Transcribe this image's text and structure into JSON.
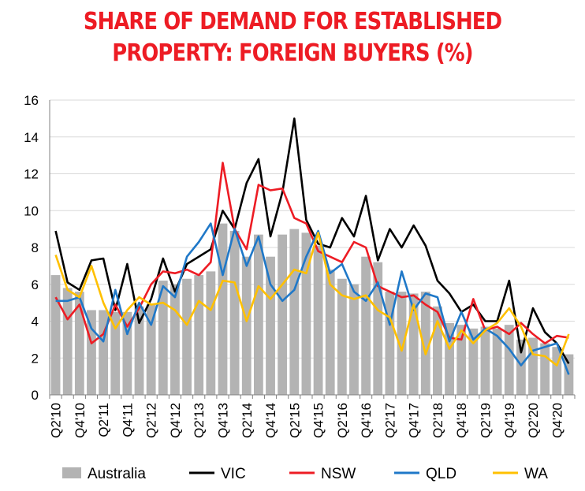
{
  "title_line1": "SHARE OF DEMAND FOR ESTABLISHED",
  "title_line2": "PROPERTY: FOREIGN BUYERS (%)",
  "chart_data": {
    "type": "bar+line",
    "title": "SHARE OF DEMAND FOR ESTABLISHED PROPERTY: FOREIGN BUYERS (%)",
    "xlabel": "",
    "ylabel": "",
    "ylim": [
      0,
      16
    ],
    "yticks": [
      0,
      2,
      4,
      6,
      8,
      10,
      12,
      14,
      16
    ],
    "grid": "horizontal",
    "legend_position": "bottom",
    "categories": [
      "Q2'10",
      "Q3'10",
      "Q4'10",
      "Q1'11",
      "Q2'11",
      "Q3'11",
      "Q4'11",
      "Q1'12",
      "Q2'12",
      "Q3'12",
      "Q4'12",
      "Q1'13",
      "Q2'13",
      "Q3'13",
      "Q4'13",
      "Q1'14",
      "Q2'14",
      "Q3'14",
      "Q4'14",
      "Q1'15",
      "Q2'15",
      "Q3'15",
      "Q4'15",
      "Q1'16",
      "Q2'16",
      "Q3'16",
      "Q4'16",
      "Q1'17",
      "Q2'17",
      "Q3'17",
      "Q4'17",
      "Q1'18",
      "Q2'18",
      "Q3'18",
      "Q4'18",
      "Q1'19",
      "Q2'19",
      "Q3'19",
      "Q4'19",
      "Q1'20",
      "Q2'20",
      "Q3'20",
      "Q4'20",
      "Q1'21"
    ],
    "xtick_labels": [
      "Q2'10",
      "Q4'10",
      "Q2'11",
      "Q4'11",
      "Q2'12",
      "Q4'12",
      "Q2'13",
      "Q4'13",
      "Q2'14",
      "Q4'14",
      "Q2'15",
      "Q4'15",
      "Q2'16",
      "Q4'16",
      "Q2'17",
      "Q4'17",
      "Q2'18",
      "Q4'18",
      "Q2'19",
      "Q4'19",
      "Q2'20",
      "Q4'20"
    ],
    "series": [
      {
        "name": "Australia",
        "kind": "bar",
        "color": "#b3b3b3",
        "values": [
          6.5,
          5.8,
          5.6,
          4.6,
          4.6,
          4.5,
          4.5,
          4.8,
          4.9,
          6.2,
          6.0,
          6.3,
          6.5,
          6.7,
          9.3,
          8.9,
          7.5,
          8.7,
          7.5,
          8.7,
          9.0,
          8.8,
          8.1,
          6.8,
          6.3,
          6.0,
          7.5,
          7.2,
          5.6,
          5.6,
          5.5,
          5.6,
          4.8,
          3.9,
          3.8,
          3.6,
          3.7,
          3.6,
          3.8,
          3.0,
          3.1,
          2.8,
          2.6,
          2.2
        ]
      },
      {
        "name": "VIC",
        "kind": "line",
        "color": "#000000",
        "values": [
          8.9,
          6.1,
          5.7,
          7.3,
          7.4,
          4.6,
          7.1,
          3.9,
          5.2,
          7.4,
          5.6,
          7.1,
          7.5,
          7.9,
          10.0,
          9.0,
          11.5,
          12.8,
          8.6,
          11.0,
          15.0,
          9.5,
          8.2,
          8.0,
          9.6,
          8.6,
          10.8,
          7.3,
          9.0,
          8.0,
          9.2,
          8.1,
          6.2,
          5.5,
          4.5,
          4.9,
          4.0,
          4.0,
          6.2,
          2.3,
          4.7,
          3.4,
          2.8,
          1.7
        ]
      },
      {
        "name": "NSW",
        "kind": "line",
        "color": "#ed1c24",
        "values": [
          5.3,
          4.1,
          4.9,
          2.8,
          3.3,
          4.9,
          3.7,
          4.7,
          6.0,
          6.7,
          6.6,
          6.8,
          6.5,
          7.2,
          12.6,
          9.0,
          7.9,
          11.4,
          11.1,
          11.2,
          9.6,
          9.3,
          7.8,
          7.5,
          7.2,
          8.3,
          8.0,
          5.9,
          5.6,
          5.3,
          5.4,
          4.9,
          4.5,
          3.1,
          3.0,
          5.2,
          3.5,
          3.7,
          3.3,
          3.9,
          3.3,
          2.8,
          3.2,
          3.1
        ]
      },
      {
        "name": "QLD",
        "kind": "line",
        "color": "#1f78c8",
        "values": [
          5.1,
          5.1,
          5.3,
          3.6,
          2.9,
          5.7,
          3.3,
          5.0,
          3.8,
          5.9,
          5.3,
          7.5,
          8.3,
          9.3,
          6.5,
          9.0,
          7.0,
          8.6,
          6.0,
          5.1,
          5.7,
          7.5,
          8.9,
          6.6,
          7.1,
          5.6,
          5.1,
          6.1,
          3.8,
          6.7,
          4.6,
          5.5,
          5.3,
          2.9,
          4.5,
          3.0,
          3.6,
          3.2,
          2.5,
          1.6,
          2.4,
          2.6,
          2.8,
          1.1
        ]
      },
      {
        "name": "WA",
        "kind": "line",
        "color": "#ffc000",
        "values": [
          7.6,
          5.7,
          5.3,
          7.0,
          5.0,
          3.6,
          4.6,
          5.3,
          4.9,
          5.0,
          4.6,
          3.8,
          5.1,
          4.6,
          6.2,
          6.1,
          4.0,
          5.9,
          5.2,
          6.0,
          6.8,
          6.6,
          8.8,
          6.0,
          5.4,
          5.2,
          5.4,
          4.6,
          4.2,
          2.4,
          4.9,
          2.2,
          4.0,
          2.5,
          3.5,
          2.8,
          3.5,
          3.9,
          4.7,
          3.7,
          2.2,
          2.1,
          1.6,
          3.3
        ]
      }
    ]
  }
}
